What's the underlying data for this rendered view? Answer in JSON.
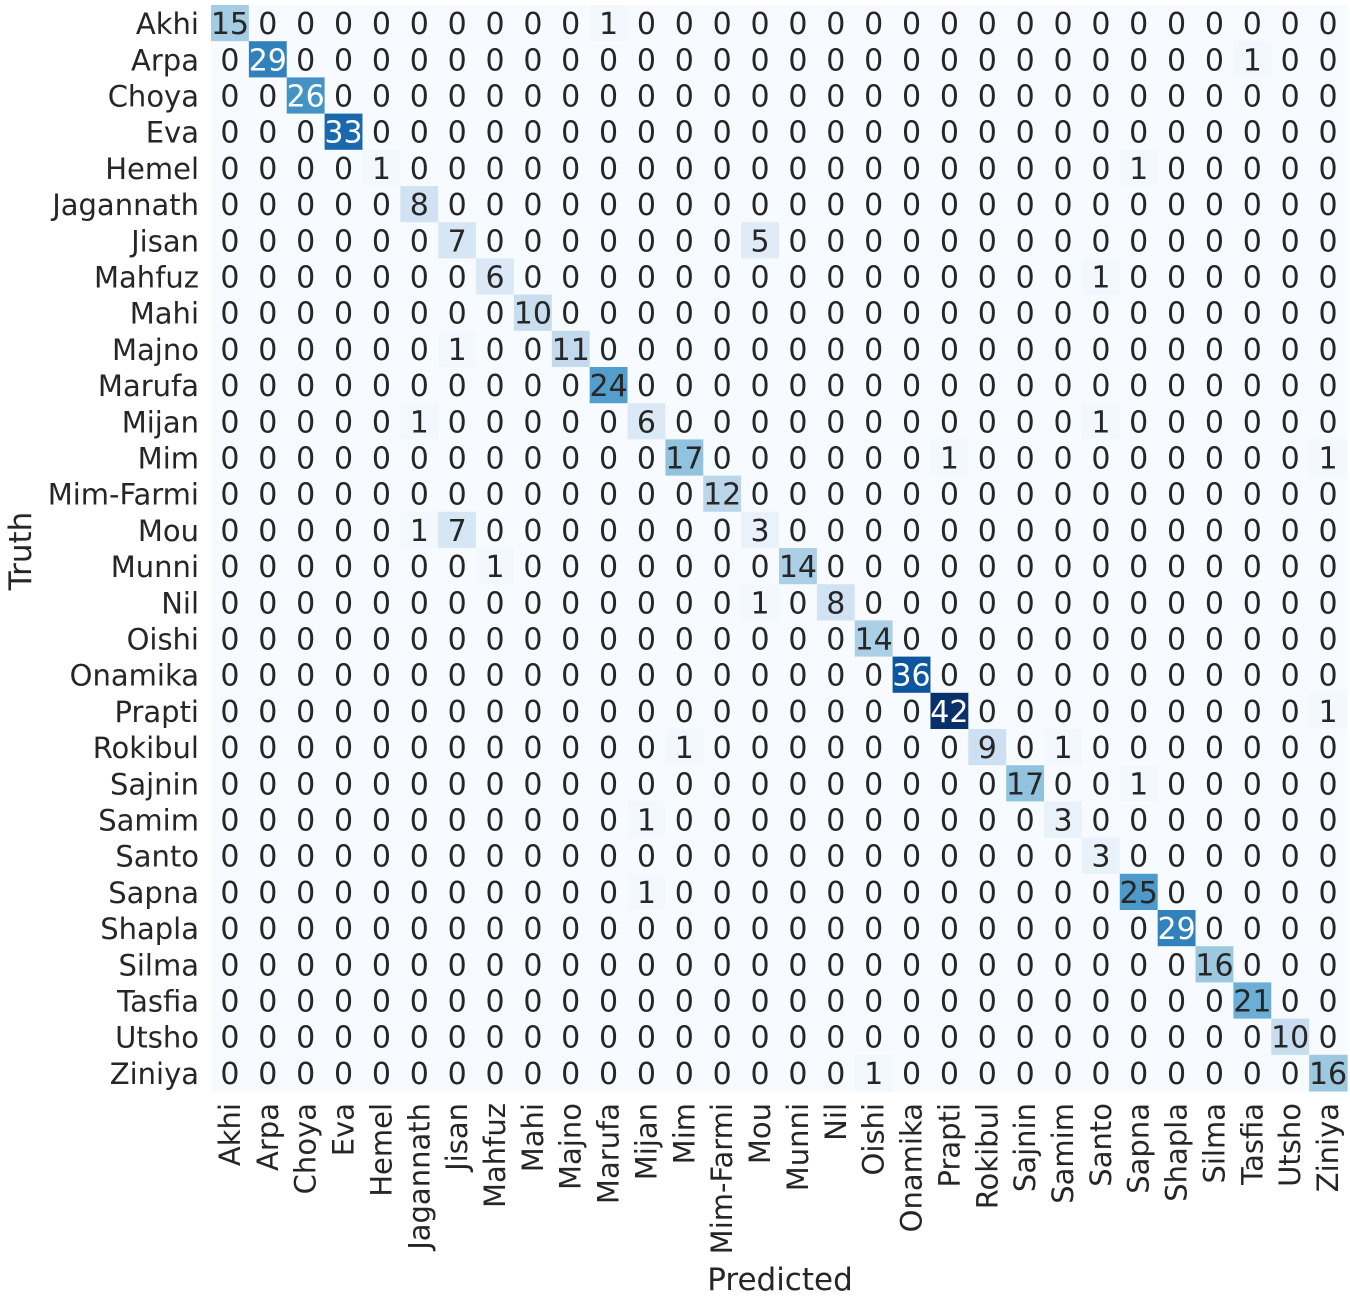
{
  "chart_data": {
    "type": "heatmap",
    "title": "",
    "xlabel": "Predicted",
    "ylabel": "Truth",
    "x_categories": [
      "Akhi",
      "Arpa",
      "Choya",
      "Eva",
      "Hemel",
      "Jagannath",
      "Jisan",
      "Mahfuz",
      "Mahi",
      "Majno",
      "Marufa",
      "Mijan",
      "Mim",
      "Mim-Farmi",
      "Mou",
      "Munni",
      "Nil",
      "Oishi",
      "Onamika",
      "Prapti",
      "Rokibul",
      "Sajnin",
      "Samim",
      "Santo",
      "Sapna",
      "Shapla",
      "Silma",
      "Tasfia",
      "Utsho",
      "Ziniya"
    ],
    "y_categories": [
      "Akhi",
      "Arpa",
      "Choya",
      "Eva",
      "Hemel",
      "Jagannath",
      "Jisan",
      "Mahfuz",
      "Mahi",
      "Majno",
      "Marufa",
      "Mijan",
      "Mim",
      "Mim-Farmi",
      "Mou",
      "Munni",
      "Nil",
      "Oishi",
      "Onamika",
      "Prapti",
      "Rokibul",
      "Sajnin",
      "Samim",
      "Santo",
      "Sapna",
      "Shapla",
      "Silma",
      "Tasfia",
      "Utsho",
      "Ziniya"
    ],
    "values": [
      [
        15,
        0,
        0,
        0,
        0,
        0,
        0,
        0,
        0,
        0,
        1,
        0,
        0,
        0,
        0,
        0,
        0,
        0,
        0,
        0,
        0,
        0,
        0,
        0,
        0,
        0,
        0,
        0,
        0,
        0
      ],
      [
        0,
        29,
        0,
        0,
        0,
        0,
        0,
        0,
        0,
        0,
        0,
        0,
        0,
        0,
        0,
        0,
        0,
        0,
        0,
        0,
        0,
        0,
        0,
        0,
        0,
        0,
        0,
        1,
        0,
        0
      ],
      [
        0,
        0,
        26,
        0,
        0,
        0,
        0,
        0,
        0,
        0,
        0,
        0,
        0,
        0,
        0,
        0,
        0,
        0,
        0,
        0,
        0,
        0,
        0,
        0,
        0,
        0,
        0,
        0,
        0,
        0
      ],
      [
        0,
        0,
        0,
        33,
        0,
        0,
        0,
        0,
        0,
        0,
        0,
        0,
        0,
        0,
        0,
        0,
        0,
        0,
        0,
        0,
        0,
        0,
        0,
        0,
        0,
        0,
        0,
        0,
        0,
        0
      ],
      [
        0,
        0,
        0,
        0,
        1,
        0,
        0,
        0,
        0,
        0,
        0,
        0,
        0,
        0,
        0,
        0,
        0,
        0,
        0,
        0,
        0,
        0,
        0,
        0,
        1,
        0,
        0,
        0,
        0,
        0
      ],
      [
        0,
        0,
        0,
        0,
        0,
        8,
        0,
        0,
        0,
        0,
        0,
        0,
        0,
        0,
        0,
        0,
        0,
        0,
        0,
        0,
        0,
        0,
        0,
        0,
        0,
        0,
        0,
        0,
        0,
        0
      ],
      [
        0,
        0,
        0,
        0,
        0,
        0,
        7,
        0,
        0,
        0,
        0,
        0,
        0,
        0,
        5,
        0,
        0,
        0,
        0,
        0,
        0,
        0,
        0,
        0,
        0,
        0,
        0,
        0,
        0,
        0
      ],
      [
        0,
        0,
        0,
        0,
        0,
        0,
        0,
        6,
        0,
        0,
        0,
        0,
        0,
        0,
        0,
        0,
        0,
        0,
        0,
        0,
        0,
        0,
        0,
        1,
        0,
        0,
        0,
        0,
        0,
        0
      ],
      [
        0,
        0,
        0,
        0,
        0,
        0,
        0,
        0,
        10,
        0,
        0,
        0,
        0,
        0,
        0,
        0,
        0,
        0,
        0,
        0,
        0,
        0,
        0,
        0,
        0,
        0,
        0,
        0,
        0,
        0
      ],
      [
        0,
        0,
        0,
        0,
        0,
        0,
        1,
        0,
        0,
        11,
        0,
        0,
        0,
        0,
        0,
        0,
        0,
        0,
        0,
        0,
        0,
        0,
        0,
        0,
        0,
        0,
        0,
        0,
        0,
        0
      ],
      [
        0,
        0,
        0,
        0,
        0,
        0,
        0,
        0,
        0,
        0,
        24,
        0,
        0,
        0,
        0,
        0,
        0,
        0,
        0,
        0,
        0,
        0,
        0,
        0,
        0,
        0,
        0,
        0,
        0,
        0
      ],
      [
        0,
        0,
        0,
        0,
        0,
        1,
        0,
        0,
        0,
        0,
        0,
        6,
        0,
        0,
        0,
        0,
        0,
        0,
        0,
        0,
        0,
        0,
        0,
        1,
        0,
        0,
        0,
        0,
        0,
        0
      ],
      [
        0,
        0,
        0,
        0,
        0,
        0,
        0,
        0,
        0,
        0,
        0,
        0,
        17,
        0,
        0,
        0,
        0,
        0,
        0,
        1,
        0,
        0,
        0,
        0,
        0,
        0,
        0,
        0,
        0,
        1
      ],
      [
        0,
        0,
        0,
        0,
        0,
        0,
        0,
        0,
        0,
        0,
        0,
        0,
        0,
        12,
        0,
        0,
        0,
        0,
        0,
        0,
        0,
        0,
        0,
        0,
        0,
        0,
        0,
        0,
        0,
        0
      ],
      [
        0,
        0,
        0,
        0,
        0,
        1,
        7,
        0,
        0,
        0,
        0,
        0,
        0,
        0,
        3,
        0,
        0,
        0,
        0,
        0,
        0,
        0,
        0,
        0,
        0,
        0,
        0,
        0,
        0,
        0
      ],
      [
        0,
        0,
        0,
        0,
        0,
        0,
        0,
        1,
        0,
        0,
        0,
        0,
        0,
        0,
        0,
        14,
        0,
        0,
        0,
        0,
        0,
        0,
        0,
        0,
        0,
        0,
        0,
        0,
        0,
        0
      ],
      [
        0,
        0,
        0,
        0,
        0,
        0,
        0,
        0,
        0,
        0,
        0,
        0,
        0,
        0,
        1,
        0,
        8,
        0,
        0,
        0,
        0,
        0,
        0,
        0,
        0,
        0,
        0,
        0,
        0,
        0
      ],
      [
        0,
        0,
        0,
        0,
        0,
        0,
        0,
        0,
        0,
        0,
        0,
        0,
        0,
        0,
        0,
        0,
        0,
        14,
        0,
        0,
        0,
        0,
        0,
        0,
        0,
        0,
        0,
        0,
        0,
        0
      ],
      [
        0,
        0,
        0,
        0,
        0,
        0,
        0,
        0,
        0,
        0,
        0,
        0,
        0,
        0,
        0,
        0,
        0,
        0,
        36,
        0,
        0,
        0,
        0,
        0,
        0,
        0,
        0,
        0,
        0,
        0
      ],
      [
        0,
        0,
        0,
        0,
        0,
        0,
        0,
        0,
        0,
        0,
        0,
        0,
        0,
        0,
        0,
        0,
        0,
        0,
        0,
        42,
        0,
        0,
        0,
        0,
        0,
        0,
        0,
        0,
        0,
        1
      ],
      [
        0,
        0,
        0,
        0,
        0,
        0,
        0,
        0,
        0,
        0,
        0,
        0,
        1,
        0,
        0,
        0,
        0,
        0,
        0,
        0,
        9,
        0,
        1,
        0,
        0,
        0,
        0,
        0,
        0,
        0
      ],
      [
        0,
        0,
        0,
        0,
        0,
        0,
        0,
        0,
        0,
        0,
        0,
        0,
        0,
        0,
        0,
        0,
        0,
        0,
        0,
        0,
        0,
        17,
        0,
        0,
        1,
        0,
        0,
        0,
        0,
        0
      ],
      [
        0,
        0,
        0,
        0,
        0,
        0,
        0,
        0,
        0,
        0,
        0,
        1,
        0,
        0,
        0,
        0,
        0,
        0,
        0,
        0,
        0,
        0,
        3,
        0,
        0,
        0,
        0,
        0,
        0,
        0
      ],
      [
        0,
        0,
        0,
        0,
        0,
        0,
        0,
        0,
        0,
        0,
        0,
        0,
        0,
        0,
        0,
        0,
        0,
        0,
        0,
        0,
        0,
        0,
        0,
        3,
        0,
        0,
        0,
        0,
        0,
        0
      ],
      [
        0,
        0,
        0,
        0,
        0,
        0,
        0,
        0,
        0,
        0,
        0,
        1,
        0,
        0,
        0,
        0,
        0,
        0,
        0,
        0,
        0,
        0,
        0,
        0,
        25,
        0,
        0,
        0,
        0,
        0
      ],
      [
        0,
        0,
        0,
        0,
        0,
        0,
        0,
        0,
        0,
        0,
        0,
        0,
        0,
        0,
        0,
        0,
        0,
        0,
        0,
        0,
        0,
        0,
        0,
        0,
        0,
        29,
        0,
        0,
        0,
        0
      ],
      [
        0,
        0,
        0,
        0,
        0,
        0,
        0,
        0,
        0,
        0,
        0,
        0,
        0,
        0,
        0,
        0,
        0,
        0,
        0,
        0,
        0,
        0,
        0,
        0,
        0,
        0,
        16,
        0,
        0,
        0
      ],
      [
        0,
        0,
        0,
        0,
        0,
        0,
        0,
        0,
        0,
        0,
        0,
        0,
        0,
        0,
        0,
        0,
        0,
        0,
        0,
        0,
        0,
        0,
        0,
        0,
        0,
        0,
        0,
        21,
        0,
        0
      ],
      [
        0,
        0,
        0,
        0,
        0,
        0,
        0,
        0,
        0,
        0,
        0,
        0,
        0,
        0,
        0,
        0,
        0,
        0,
        0,
        0,
        0,
        0,
        0,
        0,
        0,
        0,
        0,
        0,
        10,
        0
      ],
      [
        0,
        0,
        0,
        0,
        0,
        0,
        0,
        0,
        0,
        0,
        0,
        0,
        0,
        0,
        0,
        0,
        0,
        1,
        0,
        0,
        0,
        0,
        0,
        0,
        0,
        0,
        0,
        0,
        0,
        16
      ]
    ],
    "value_range": [
      0,
      42
    ],
    "colormap": "Blues",
    "colors": {
      "low": "#f7fbff",
      "high": "#08306b",
      "text_dark": "#262626",
      "text_light": "#ffffff"
    },
    "annotations": true,
    "colorbar": false,
    "grid": false
  }
}
